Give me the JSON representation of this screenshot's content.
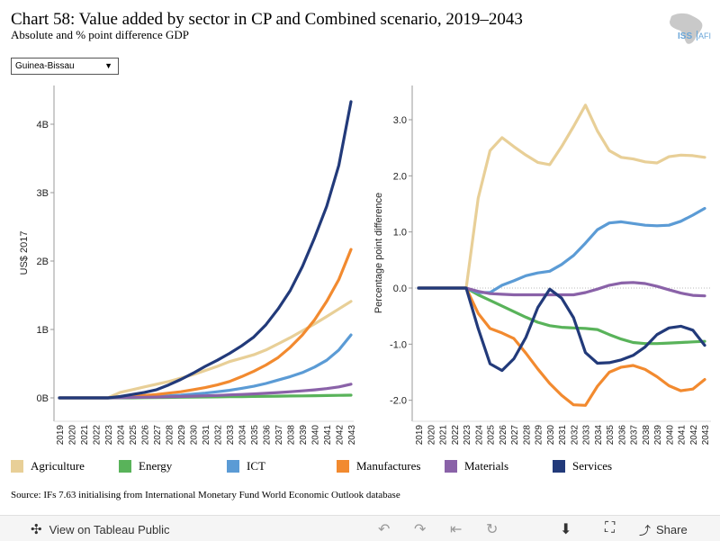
{
  "header": {
    "title": "Chart 58: Value added by sector in CP and Combined scenario, 2019–2043",
    "subtitle": "Absolute and % point difference GDP",
    "logo_text": "ISS",
    "logo_text2": "AFI"
  },
  "filter": {
    "selected": "Guinea-Bissau"
  },
  "colors": {
    "Agriculture": "#e8cf97",
    "Energy": "#59b35a",
    "ICT": "#5b9bd5",
    "Manufactures": "#f28a2f",
    "Materials": "#8a62a8",
    "Services": "#223a7a"
  },
  "chart_data": [
    {
      "type": "line",
      "ylabel": "US$ 2017",
      "ylim": [
        0,
        4.4
      ],
      "yticks": [
        {
          "value": 0,
          "label": "0B"
        },
        {
          "value": 1,
          "label": "1B"
        },
        {
          "value": 2,
          "label": "2B"
        },
        {
          "value": 3,
          "label": "3B"
        },
        {
          "value": 4,
          "label": "4B"
        }
      ],
      "x": [
        "2019",
        "2020",
        "2021",
        "2022",
        "2023",
        "2024",
        "2025",
        "2026",
        "2027",
        "2028",
        "2029",
        "2030",
        "2031",
        "2032",
        "2033",
        "2034",
        "2035",
        "2036",
        "2037",
        "2038",
        "2039",
        "2040",
        "2041",
        "2042",
        "2043"
      ],
      "series": [
        {
          "name": "Agriculture",
          "values": [
            0,
            0,
            0,
            0,
            0,
            0.08,
            0.12,
            0.16,
            0.2,
            0.24,
            0.29,
            0.34,
            0.4,
            0.46,
            0.53,
            0.58,
            0.63,
            0.7,
            0.79,
            0.88,
            0.98,
            1.08,
            1.19,
            1.3,
            1.41
          ]
        },
        {
          "name": "Energy",
          "values": [
            0,
            0,
            0,
            0,
            0,
            0,
            0,
            0.003,
            0.005,
            0.007,
            0.009,
            0.011,
            0.013,
            0.015,
            0.017,
            0.019,
            0.021,
            0.023,
            0.025,
            0.027,
            0.029,
            0.031,
            0.034,
            0.037,
            0.04
          ]
        },
        {
          "name": "ICT",
          "values": [
            0,
            0,
            0,
            0,
            0,
            0.005,
            0.01,
            0.015,
            0.02,
            0.03,
            0.04,
            0.055,
            0.07,
            0.09,
            0.11,
            0.14,
            0.17,
            0.21,
            0.26,
            0.31,
            0.37,
            0.45,
            0.55,
            0.7,
            0.92
          ]
        },
        {
          "name": "Manufactures",
          "values": [
            0,
            0,
            0,
            0,
            0,
            0.01,
            0.02,
            0.035,
            0.05,
            0.07,
            0.09,
            0.12,
            0.15,
            0.19,
            0.24,
            0.31,
            0.39,
            0.48,
            0.59,
            0.74,
            0.92,
            1.14,
            1.41,
            1.73,
            2.17
          ]
        },
        {
          "name": "Materials",
          "values": [
            0,
            0,
            0,
            0,
            0,
            0.003,
            0.006,
            0.009,
            0.012,
            0.016,
            0.02,
            0.025,
            0.03,
            0.036,
            0.043,
            0.05,
            0.058,
            0.067,
            0.077,
            0.089,
            0.102,
            0.117,
            0.135,
            0.16,
            0.2
          ]
        },
        {
          "name": "Services",
          "values": [
            0,
            0,
            0,
            0,
            0,
            0.02,
            0.05,
            0.08,
            0.12,
            0.19,
            0.27,
            0.36,
            0.46,
            0.55,
            0.65,
            0.76,
            0.89,
            1.07,
            1.3,
            1.57,
            1.92,
            2.34,
            2.8,
            3.4,
            4.33
          ]
        }
      ]
    },
    {
      "type": "line",
      "ylabel": "Percentage point difference",
      "ylim": [
        -2.4,
        3.6
      ],
      "yticks": [
        {
          "value": 3,
          "label": "3.0"
        },
        {
          "value": 2,
          "label": "2.0"
        },
        {
          "value": 1,
          "label": "1.0"
        },
        {
          "value": 0,
          "label": "0.0"
        },
        {
          "value": -1,
          "label": "-1.0"
        },
        {
          "value": -2,
          "label": "-2.0"
        }
      ],
      "x": [
        "2019",
        "2020",
        "2021",
        "2022",
        "2023",
        "2024",
        "2025",
        "2026",
        "2027",
        "2028",
        "2029",
        "2030",
        "2031",
        "2032",
        "2033",
        "2034",
        "2035",
        "2036",
        "2037",
        "2038",
        "2039",
        "2040",
        "2041",
        "2042",
        "2043"
      ],
      "series": [
        {
          "name": "Agriculture",
          "values": [
            0,
            0,
            0,
            0,
            0,
            1.6,
            2.45,
            2.68,
            2.52,
            2.37,
            2.24,
            2.2,
            2.52,
            2.88,
            3.26,
            2.8,
            2.45,
            2.33,
            2.3,
            2.25,
            2.23,
            2.34,
            2.37,
            2.36,
            2.33
          ]
        },
        {
          "name": "Energy",
          "values": [
            0,
            0,
            0,
            0,
            0,
            -0.12,
            -0.22,
            -0.32,
            -0.42,
            -0.52,
            -0.61,
            -0.67,
            -0.7,
            -0.71,
            -0.72,
            -0.74,
            -0.83,
            -0.91,
            -0.97,
            -0.99,
            -0.99,
            -0.98,
            -0.97,
            -0.96,
            -0.95
          ]
        },
        {
          "name": "ICT",
          "values": [
            0,
            0,
            0,
            0,
            0,
            -0.08,
            -0.08,
            0.05,
            0.13,
            0.22,
            0.27,
            0.3,
            0.42,
            0.58,
            0.8,
            1.04,
            1.16,
            1.18,
            1.15,
            1.12,
            1.11,
            1.12,
            1.19,
            1.3,
            1.42
          ]
        },
        {
          "name": "Manufactures",
          "values": [
            0,
            0,
            0,
            0,
            0,
            -0.45,
            -0.72,
            -0.8,
            -0.9,
            -1.16,
            -1.44,
            -1.7,
            -1.91,
            -2.08,
            -2.09,
            -1.75,
            -1.5,
            -1.41,
            -1.38,
            -1.45,
            -1.58,
            -1.74,
            -1.83,
            -1.8,
            -1.63
          ]
        },
        {
          "name": "Materials",
          "values": [
            0,
            0,
            0,
            0,
            0,
            -0.06,
            -0.1,
            -0.11,
            -0.12,
            -0.12,
            -0.12,
            -0.12,
            -0.12,
            -0.12,
            -0.08,
            -0.02,
            0.05,
            0.09,
            0.1,
            0.08,
            0.03,
            -0.03,
            -0.09,
            -0.13,
            -0.14
          ]
        },
        {
          "name": "Services",
          "values": [
            0,
            0,
            0,
            0,
            0,
            -0.72,
            -1.35,
            -1.47,
            -1.26,
            -0.88,
            -0.35,
            -0.02,
            -0.18,
            -0.53,
            -1.15,
            -1.34,
            -1.33,
            -1.28,
            -1.2,
            -1.05,
            -0.83,
            -0.71,
            -0.68,
            -0.75,
            -1.02
          ]
        }
      ]
    }
  ],
  "legend": [
    "Agriculture",
    "Energy",
    "ICT",
    "Manufactures",
    "Materials",
    "Services"
  ],
  "source": "Source: IFs 7.63 initialising from International Monetary Fund World Economic Outlook database",
  "footer": {
    "view_label": "View on Tableau Public",
    "share_label": "Share"
  }
}
